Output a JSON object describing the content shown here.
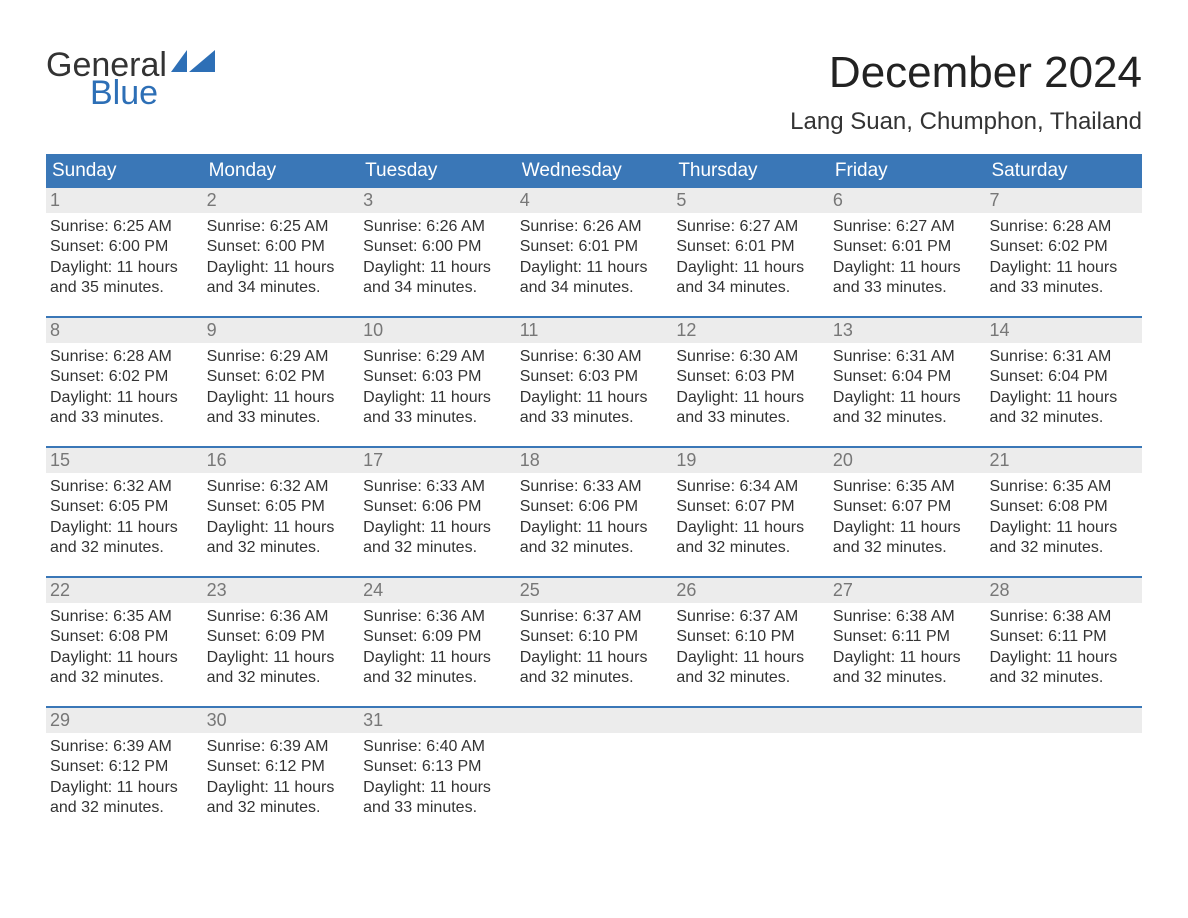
{
  "logo": {
    "text1": "General",
    "text2": "Blue",
    "flag_color": "#2d6fb6"
  },
  "header": {
    "month_title": "December 2024",
    "location": "Lang Suan, Chumphon, Thailand"
  },
  "colors": {
    "header_bg": "#3a77b7",
    "daynum_bg": "#ececec",
    "daynum_text": "#777777",
    "body_text": "#333333",
    "week_border": "#3a77b7",
    "page_bg": "#ffffff"
  },
  "typography": {
    "month_title_fontsize": 44,
    "location_fontsize": 24,
    "weekday_fontsize": 19,
    "daynum_fontsize": 18,
    "body_fontsize": 16
  },
  "weekdays": [
    "Sunday",
    "Monday",
    "Tuesday",
    "Wednesday",
    "Thursday",
    "Friday",
    "Saturday"
  ],
  "weeks": [
    [
      {
        "n": "1",
        "sr": "Sunrise: 6:25 AM",
        "ss": "Sunset: 6:00 PM",
        "d1": "Daylight: 11 hours",
        "d2": "and 35 minutes."
      },
      {
        "n": "2",
        "sr": "Sunrise: 6:25 AM",
        "ss": "Sunset: 6:00 PM",
        "d1": "Daylight: 11 hours",
        "d2": "and 34 minutes."
      },
      {
        "n": "3",
        "sr": "Sunrise: 6:26 AM",
        "ss": "Sunset: 6:00 PM",
        "d1": "Daylight: 11 hours",
        "d2": "and 34 minutes."
      },
      {
        "n": "4",
        "sr": "Sunrise: 6:26 AM",
        "ss": "Sunset: 6:01 PM",
        "d1": "Daylight: 11 hours",
        "d2": "and 34 minutes."
      },
      {
        "n": "5",
        "sr": "Sunrise: 6:27 AM",
        "ss": "Sunset: 6:01 PM",
        "d1": "Daylight: 11 hours",
        "d2": "and 34 minutes."
      },
      {
        "n": "6",
        "sr": "Sunrise: 6:27 AM",
        "ss": "Sunset: 6:01 PM",
        "d1": "Daylight: 11 hours",
        "d2": "and 33 minutes."
      },
      {
        "n": "7",
        "sr": "Sunrise: 6:28 AM",
        "ss": "Sunset: 6:02 PM",
        "d1": "Daylight: 11 hours",
        "d2": "and 33 minutes."
      }
    ],
    [
      {
        "n": "8",
        "sr": "Sunrise: 6:28 AM",
        "ss": "Sunset: 6:02 PM",
        "d1": "Daylight: 11 hours",
        "d2": "and 33 minutes."
      },
      {
        "n": "9",
        "sr": "Sunrise: 6:29 AM",
        "ss": "Sunset: 6:02 PM",
        "d1": "Daylight: 11 hours",
        "d2": "and 33 minutes."
      },
      {
        "n": "10",
        "sr": "Sunrise: 6:29 AM",
        "ss": "Sunset: 6:03 PM",
        "d1": "Daylight: 11 hours",
        "d2": "and 33 minutes."
      },
      {
        "n": "11",
        "sr": "Sunrise: 6:30 AM",
        "ss": "Sunset: 6:03 PM",
        "d1": "Daylight: 11 hours",
        "d2": "and 33 minutes."
      },
      {
        "n": "12",
        "sr": "Sunrise: 6:30 AM",
        "ss": "Sunset: 6:03 PM",
        "d1": "Daylight: 11 hours",
        "d2": "and 33 minutes."
      },
      {
        "n": "13",
        "sr": "Sunrise: 6:31 AM",
        "ss": "Sunset: 6:04 PM",
        "d1": "Daylight: 11 hours",
        "d2": "and 32 minutes."
      },
      {
        "n": "14",
        "sr": "Sunrise: 6:31 AM",
        "ss": "Sunset: 6:04 PM",
        "d1": "Daylight: 11 hours",
        "d2": "and 32 minutes."
      }
    ],
    [
      {
        "n": "15",
        "sr": "Sunrise: 6:32 AM",
        "ss": "Sunset: 6:05 PM",
        "d1": "Daylight: 11 hours",
        "d2": "and 32 minutes."
      },
      {
        "n": "16",
        "sr": "Sunrise: 6:32 AM",
        "ss": "Sunset: 6:05 PM",
        "d1": "Daylight: 11 hours",
        "d2": "and 32 minutes."
      },
      {
        "n": "17",
        "sr": "Sunrise: 6:33 AM",
        "ss": "Sunset: 6:06 PM",
        "d1": "Daylight: 11 hours",
        "d2": "and 32 minutes."
      },
      {
        "n": "18",
        "sr": "Sunrise: 6:33 AM",
        "ss": "Sunset: 6:06 PM",
        "d1": "Daylight: 11 hours",
        "d2": "and 32 minutes."
      },
      {
        "n": "19",
        "sr": "Sunrise: 6:34 AM",
        "ss": "Sunset: 6:07 PM",
        "d1": "Daylight: 11 hours",
        "d2": "and 32 minutes."
      },
      {
        "n": "20",
        "sr": "Sunrise: 6:35 AM",
        "ss": "Sunset: 6:07 PM",
        "d1": "Daylight: 11 hours",
        "d2": "and 32 minutes."
      },
      {
        "n": "21",
        "sr": "Sunrise: 6:35 AM",
        "ss": "Sunset: 6:08 PM",
        "d1": "Daylight: 11 hours",
        "d2": "and 32 minutes."
      }
    ],
    [
      {
        "n": "22",
        "sr": "Sunrise: 6:35 AM",
        "ss": "Sunset: 6:08 PM",
        "d1": "Daylight: 11 hours",
        "d2": "and 32 minutes."
      },
      {
        "n": "23",
        "sr": "Sunrise: 6:36 AM",
        "ss": "Sunset: 6:09 PM",
        "d1": "Daylight: 11 hours",
        "d2": "and 32 minutes."
      },
      {
        "n": "24",
        "sr": "Sunrise: 6:36 AM",
        "ss": "Sunset: 6:09 PM",
        "d1": "Daylight: 11 hours",
        "d2": "and 32 minutes."
      },
      {
        "n": "25",
        "sr": "Sunrise: 6:37 AM",
        "ss": "Sunset: 6:10 PM",
        "d1": "Daylight: 11 hours",
        "d2": "and 32 minutes."
      },
      {
        "n": "26",
        "sr": "Sunrise: 6:37 AM",
        "ss": "Sunset: 6:10 PM",
        "d1": "Daylight: 11 hours",
        "d2": "and 32 minutes."
      },
      {
        "n": "27",
        "sr": "Sunrise: 6:38 AM",
        "ss": "Sunset: 6:11 PM",
        "d1": "Daylight: 11 hours",
        "d2": "and 32 minutes."
      },
      {
        "n": "28",
        "sr": "Sunrise: 6:38 AM",
        "ss": "Sunset: 6:11 PM",
        "d1": "Daylight: 11 hours",
        "d2": "and 32 minutes."
      }
    ],
    [
      {
        "n": "29",
        "sr": "Sunrise: 6:39 AM",
        "ss": "Sunset: 6:12 PM",
        "d1": "Daylight: 11 hours",
        "d2": "and 32 minutes."
      },
      {
        "n": "30",
        "sr": "Sunrise: 6:39 AM",
        "ss": "Sunset: 6:12 PM",
        "d1": "Daylight: 11 hours",
        "d2": "and 32 minutes."
      },
      {
        "n": "31",
        "sr": "Sunrise: 6:40 AM",
        "ss": "Sunset: 6:13 PM",
        "d1": "Daylight: 11 hours",
        "d2": "and 33 minutes."
      },
      {
        "n": "",
        "sr": "",
        "ss": "",
        "d1": "",
        "d2": "",
        "empty": true
      },
      {
        "n": "",
        "sr": "",
        "ss": "",
        "d1": "",
        "d2": "",
        "empty": true
      },
      {
        "n": "",
        "sr": "",
        "ss": "",
        "d1": "",
        "d2": "",
        "empty": true
      },
      {
        "n": "",
        "sr": "",
        "ss": "",
        "d1": "",
        "d2": "",
        "empty": true
      }
    ]
  ]
}
